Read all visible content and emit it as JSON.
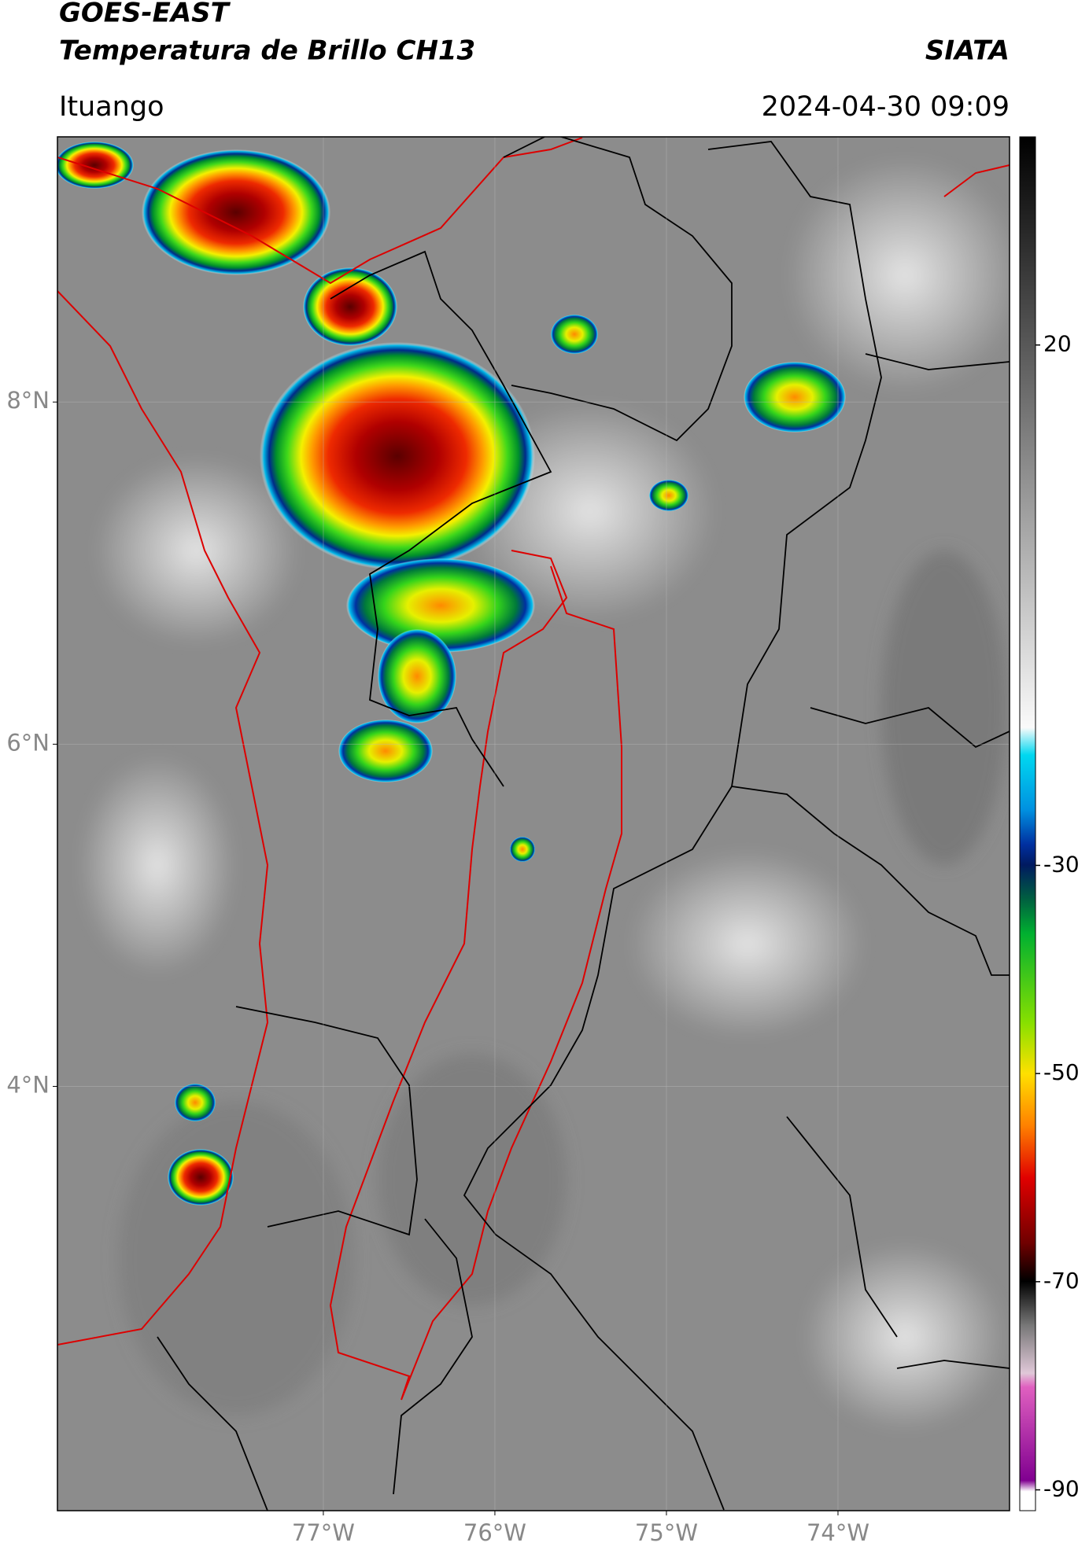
{
  "header": {
    "title": "GOES-EAST",
    "subtitle": "Temperatura de Brillo CH13",
    "brand": "SIATA",
    "location": "Ituango",
    "datetime": "2024-04-30 09:09"
  },
  "map": {
    "xlim": [
      -78.55,
      -73.0
    ],
    "ylim": [
      1.52,
      9.55
    ],
    "xticks": [
      {
        "value": -77,
        "label": "77°W"
      },
      {
        "value": -76,
        "label": "76°W"
      },
      {
        "value": -75,
        "label": "75°W"
      },
      {
        "value": -74,
        "label": "74°W"
      }
    ],
    "yticks": [
      {
        "value": 8,
        "label": "8°N"
      },
      {
        "value": 6,
        "label": "6°N"
      },
      {
        "value": 4,
        "label": "4°N"
      }
    ]
  },
  "colorbar": {
    "lim": [
      -92,
      40
    ],
    "ticks": [
      20,
      -30,
      -50,
      -70,
      -90
    ]
  }
}
